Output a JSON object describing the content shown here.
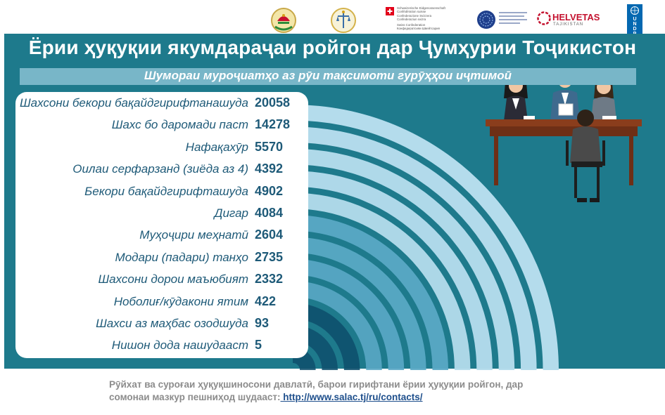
{
  "title": "Ёрии ҳуқуқии якумдараҷаи ройгон дар Ҷумҳурии Тоҷикистон",
  "subtitle": "Шумораи муроҷиатҳо аз рӯи тақсимоти гурӯҳҳои иҷтимоӣ",
  "logos": {
    "swiss_text_lines": [
      "Schweizerische Eidgenossenschaft",
      "Confédération suisse",
      "Confederazione Svizzera",
      "Confederaziun svizra",
      "Swiss Confederation",
      "Конфедератсияи Швейтсария"
    ],
    "helvetas": "HELVETAS",
    "helvetas_sub": "TAJIKISTAN",
    "undp": [
      "U",
      "N",
      "D",
      "P"
    ]
  },
  "colors": {
    "panel": "#1e7a8c",
    "arc_light": "#b4dcec",
    "arc_mid": "#5aa9c6",
    "arc_dark": "#0e4f6c",
    "text_dark": "#1e5a78"
  },
  "chart_data": {
    "type": "bar",
    "categories": [
      "Шахсони бекори бақайдгирифтанашуда",
      "Шахс бо даромади паст",
      "Нафақахӯр",
      "Оилаи серфарзанд (зиёда аз 4)",
      "Бекори бақайдгирифташуда",
      "Дигар",
      "Муҳоҷири меҳнатӣ",
      "Модари (падари) танҳо",
      "Шахсони дорои маъюбият",
      "Ноболиғ/кӯдакони ятим",
      "Шахси аз маҳбас озодшуда",
      "Нишон дода нашудааст"
    ],
    "values": [
      20058,
      14278,
      5570,
      4392,
      4902,
      4084,
      2604,
      2735,
      2332,
      422,
      93,
      5
    ],
    "value_labels": [
      "20058",
      "14278",
      "5570",
      "4392",
      "4902",
      "4084",
      "2604",
      "2735",
      "2332",
      "422",
      "93",
      "5"
    ]
  },
  "footer": {
    "text": "Рӯйхат ва суроғаи ҳуқуқшиносони давлатӣ, барои гирифтани ёрии ҳуқуқии ройгон, дар сомонаи мазкур пешниҳод шудааст:",
    "link": " http://www.salac.tj/ru/contacts/"
  }
}
